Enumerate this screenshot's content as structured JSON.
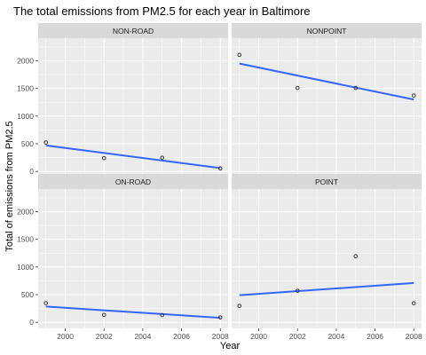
{
  "chart_data": {
    "type": "scatter",
    "title": "The total emissions from PM2.5 for each year in Baltimore",
    "xlabel": "Year",
    "ylabel": "Total of emissions from PM2.5",
    "xlim": [
      1998.6,
      2008.4
    ],
    "ylim": [
      -110,
      2410
    ],
    "x_ticks": [
      2000,
      2002,
      2004,
      2006,
      2008
    ],
    "y_ticks": [
      0,
      500,
      1000,
      1500,
      2000
    ],
    "grid": true,
    "facets": [
      {
        "label": "NON-ROAD",
        "points": [
          [
            1999,
            523
          ],
          [
            2002,
            241
          ],
          [
            2005,
            249
          ],
          [
            2008,
            55
          ]
        ],
        "trend": [
          [
            1999,
            470
          ],
          [
            2008,
            60
          ]
        ]
      },
      {
        "label": "NONPOINT",
        "points": [
          [
            1999,
            2108
          ],
          [
            2002,
            1510
          ],
          [
            2005,
            1510
          ],
          [
            2008,
            1373
          ]
        ],
        "trend": [
          [
            1999,
            1950
          ],
          [
            2008,
            1300
          ]
        ]
      },
      {
        "label": "ON-ROAD",
        "points": [
          [
            1999,
            347
          ],
          [
            2002,
            134
          ],
          [
            2005,
            130
          ],
          [
            2008,
            88
          ]
        ],
        "trend": [
          [
            1999,
            285
          ],
          [
            2008,
            80
          ]
        ]
      },
      {
        "label": "POINT",
        "points": [
          [
            1999,
            297
          ],
          [
            2002,
            570
          ],
          [
            2005,
            1195
          ],
          [
            2008,
            345
          ]
        ],
        "trend": [
          [
            1999,
            490
          ],
          [
            2008,
            710
          ]
        ]
      }
    ],
    "colors": {
      "panel_bg": "#ebebeb",
      "strip_bg": "#d9d9d9",
      "grid_major": "#ffffff",
      "trend_line": "#3366ff",
      "point_stroke": "#333333"
    }
  }
}
